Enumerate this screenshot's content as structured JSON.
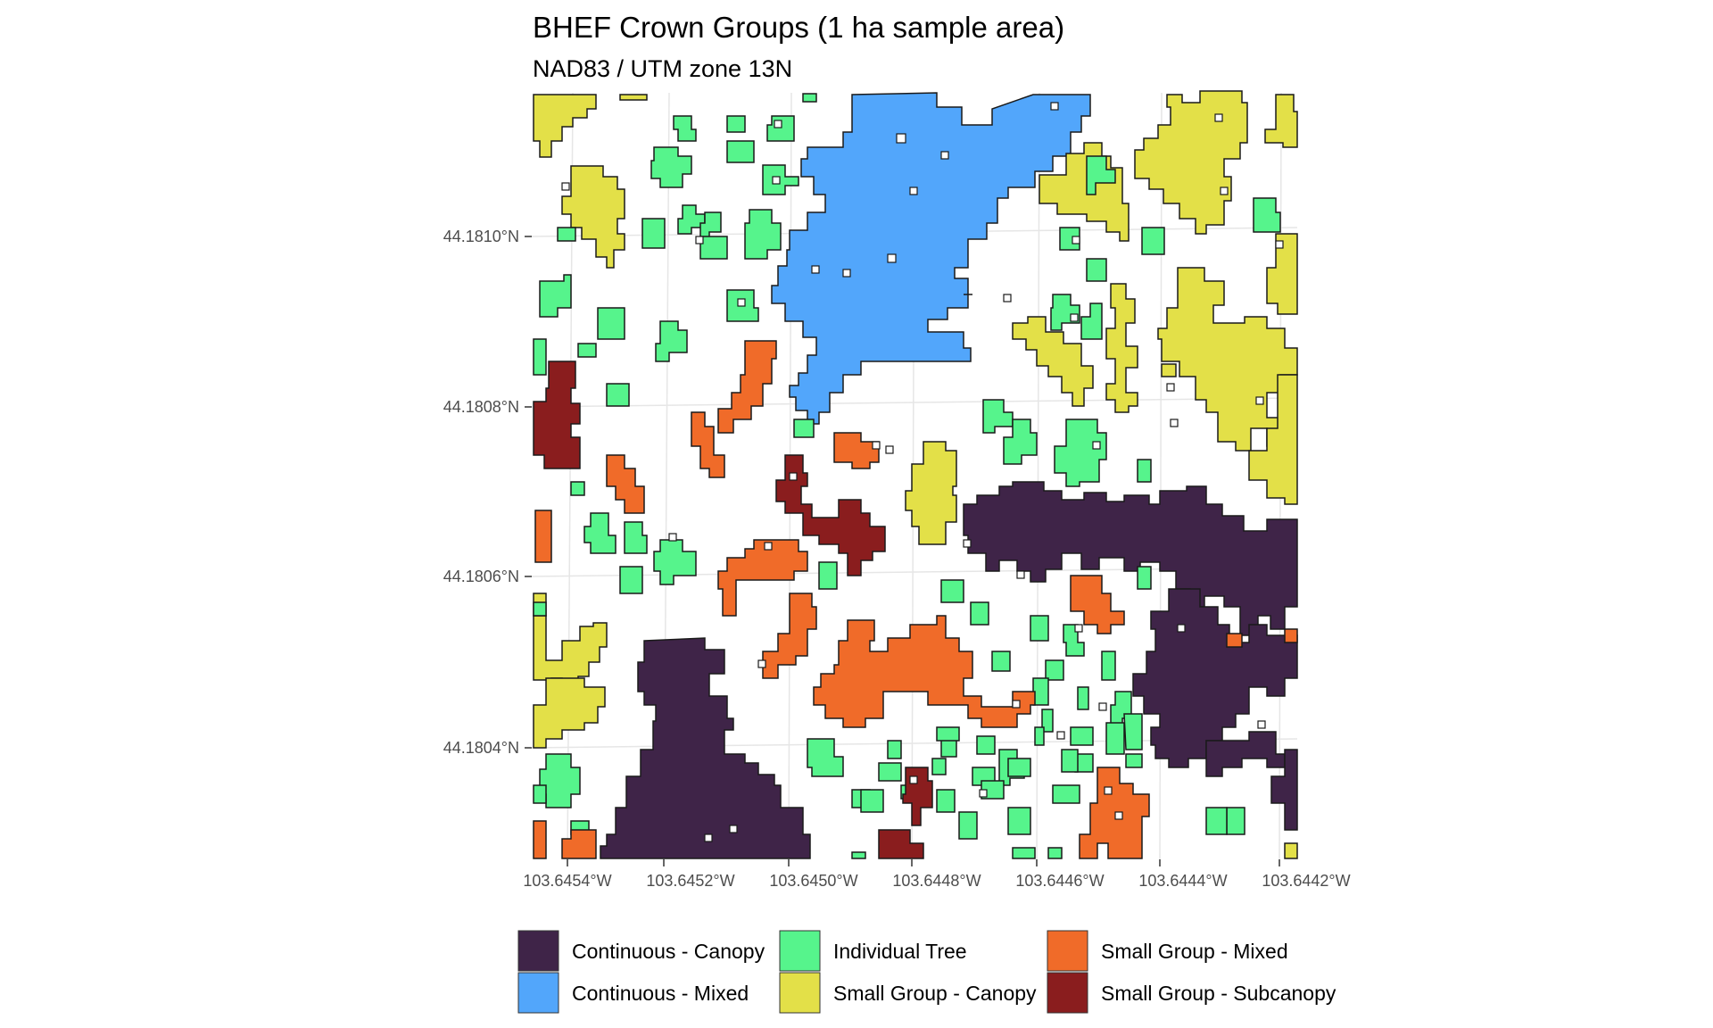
{
  "title": "BHEF Crown Groups (1 ha sample area)",
  "subtitle": "NAD83 / UTM zone 13N",
  "y_ticks": [
    "44.1810°N",
    "44.1808°N",
    "44.1806°N",
    "44.1804°N"
  ],
  "x_ticks": [
    "103.6454°W",
    "103.6452°W",
    "103.6450°W",
    "103.6448°W",
    "103.6446°W",
    "103.6444°W",
    "103.6442°W"
  ],
  "legend": [
    {
      "label": "Continuous - Canopy",
      "color": "#3f2448"
    },
    {
      "label": "Individual Tree",
      "color": "#56f48c"
    },
    {
      "label": "Small Group - Mixed",
      "color": "#f06b29"
    },
    {
      "label": "Continuous - Mixed",
      "color": "#52a6fb"
    },
    {
      "label": "Small Group - Canopy",
      "color": "#e3e048"
    },
    {
      "label": "Small Group - Subcanopy",
      "color": "#8a1d1e"
    }
  ]
}
